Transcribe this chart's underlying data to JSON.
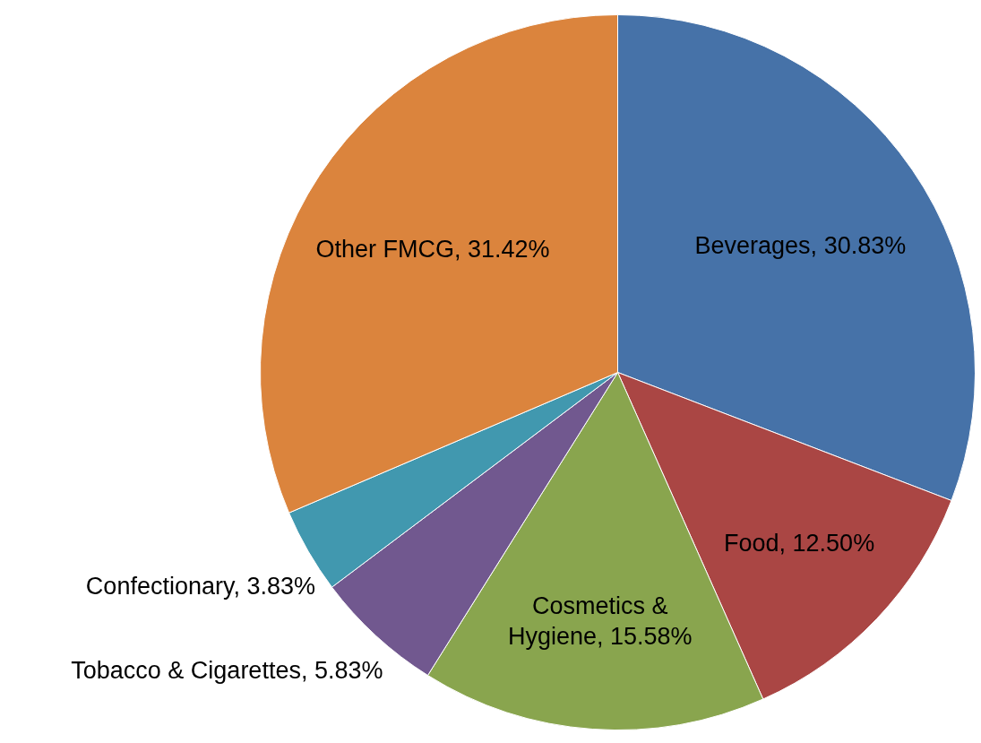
{
  "chart_data": {
    "type": "pie",
    "categories": [
      "Beverages",
      "Food",
      "Cosmetics & Hygiene",
      "Tobacco & Cigarettes",
      "Confectionary",
      "Other FMCG"
    ],
    "values": [
      30.83,
      12.5,
      15.58,
      5.83,
      3.83,
      31.42
    ],
    "value_labels": [
      "30.83%",
      "12.50%",
      "15.58%",
      "5.83%",
      "3.83%",
      "31.42%"
    ],
    "colors": [
      "#4672a8",
      "#aa4644",
      "#89a54e",
      "#71588f",
      "#4198af",
      "#db843d"
    ],
    "legend": false
  }
}
